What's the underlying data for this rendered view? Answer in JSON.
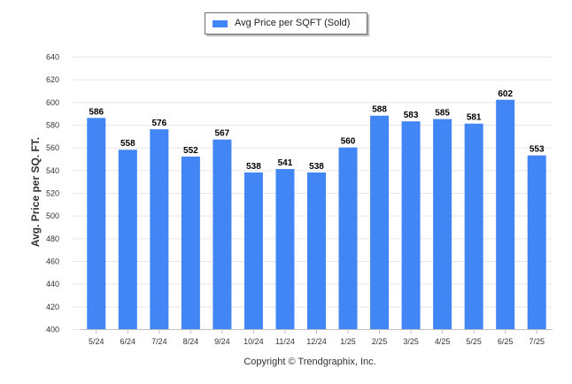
{
  "chart_data": {
    "type": "bar",
    "categories": [
      "5/24",
      "6/24",
      "7/24",
      "8/24",
      "9/24",
      "10/24",
      "11/24",
      "12/24",
      "1/25",
      "2/25",
      "3/25",
      "4/25",
      "5/25",
      "6/25",
      "7/25"
    ],
    "series": [
      {
        "name": "Avg Price per SQFT (Sold)",
        "values": [
          586,
          558,
          576,
          552,
          567,
          538,
          541,
          538,
          560,
          588,
          583,
          585,
          581,
          602,
          553
        ]
      }
    ],
    "title": "",
    "xlabel": "",
    "ylabel": "Avg. Price per SQ. FT.",
    "ylim": [
      400,
      640
    ],
    "yticks": [
      400,
      420,
      440,
      460,
      480,
      500,
      520,
      540,
      560,
      580,
      600,
      620,
      640
    ],
    "grid": true,
    "legend_position": "top-center",
    "bar_color": "#4285f4",
    "data_labels": true
  },
  "legend": {
    "label": "Avg Price per SQFT (Sold)"
  },
  "axes": {
    "ylabel": "Avg. Price per SQ. FT."
  },
  "footer": {
    "copyright": "Copyright © Trendgraphix, Inc."
  }
}
